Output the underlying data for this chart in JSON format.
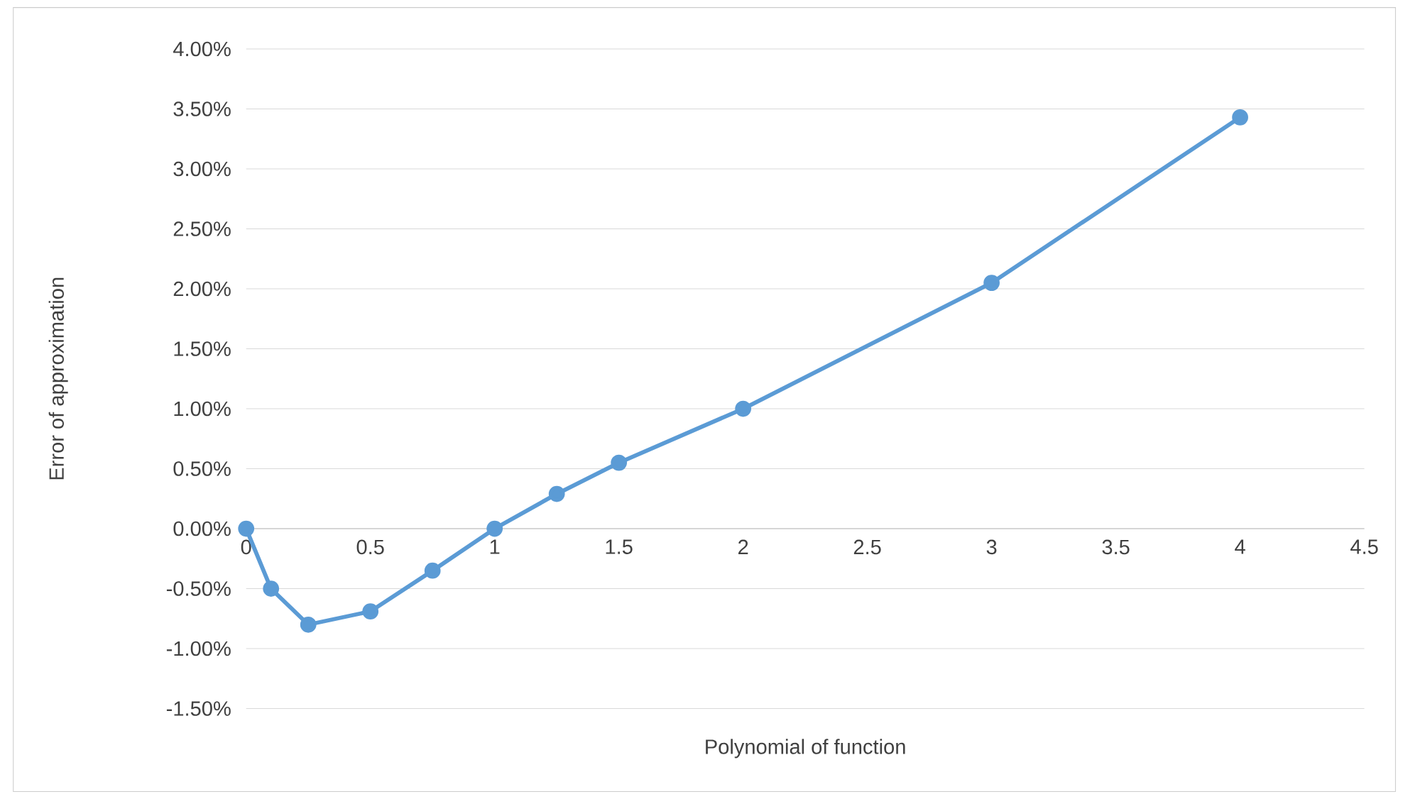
{
  "chart_data": {
    "type": "line",
    "xlabel": "Polynomial of function",
    "ylabel": "Error of approximation",
    "x": [
      0,
      0.1,
      0.25,
      0.5,
      0.75,
      1,
      1.25,
      1.5,
      2,
      3,
      4
    ],
    "series": [
      {
        "color": "#5b9bd5",
        "values": [
          0,
          -0.5,
          -0.8,
          -0.69,
          -0.35,
          0,
          0.29,
          0.55,
          1.0,
          2.05,
          3.43
        ]
      }
    ],
    "xlim": [
      0,
      4.5
    ],
    "xticks": [
      0,
      0.5,
      1,
      1.5,
      2,
      2.5,
      3,
      3.5,
      4,
      4.5
    ],
    "ylim": [
      -1.5,
      4
    ],
    "yticks": [
      {
        "value": -1.5,
        "label": "-1.50%"
      },
      {
        "value": -1,
        "label": "-1.00%"
      },
      {
        "value": -0.5,
        "label": "-0.50%"
      },
      {
        "value": 0,
        "label": "0.00%"
      },
      {
        "value": 0.5,
        "label": "0.50%"
      },
      {
        "value": 1,
        "label": "1.00%"
      },
      {
        "value": 1.5,
        "label": "1.50%"
      },
      {
        "value": 2,
        "label": "2.00%"
      },
      {
        "value": 2.5,
        "label": "2.50%"
      },
      {
        "value": 3,
        "label": "3.00%"
      },
      {
        "value": 3.5,
        "label": "3.50%"
      },
      {
        "value": 4,
        "label": "4.00%"
      }
    ],
    "grid": "y",
    "marker": "circle",
    "line_style": "solid"
  }
}
